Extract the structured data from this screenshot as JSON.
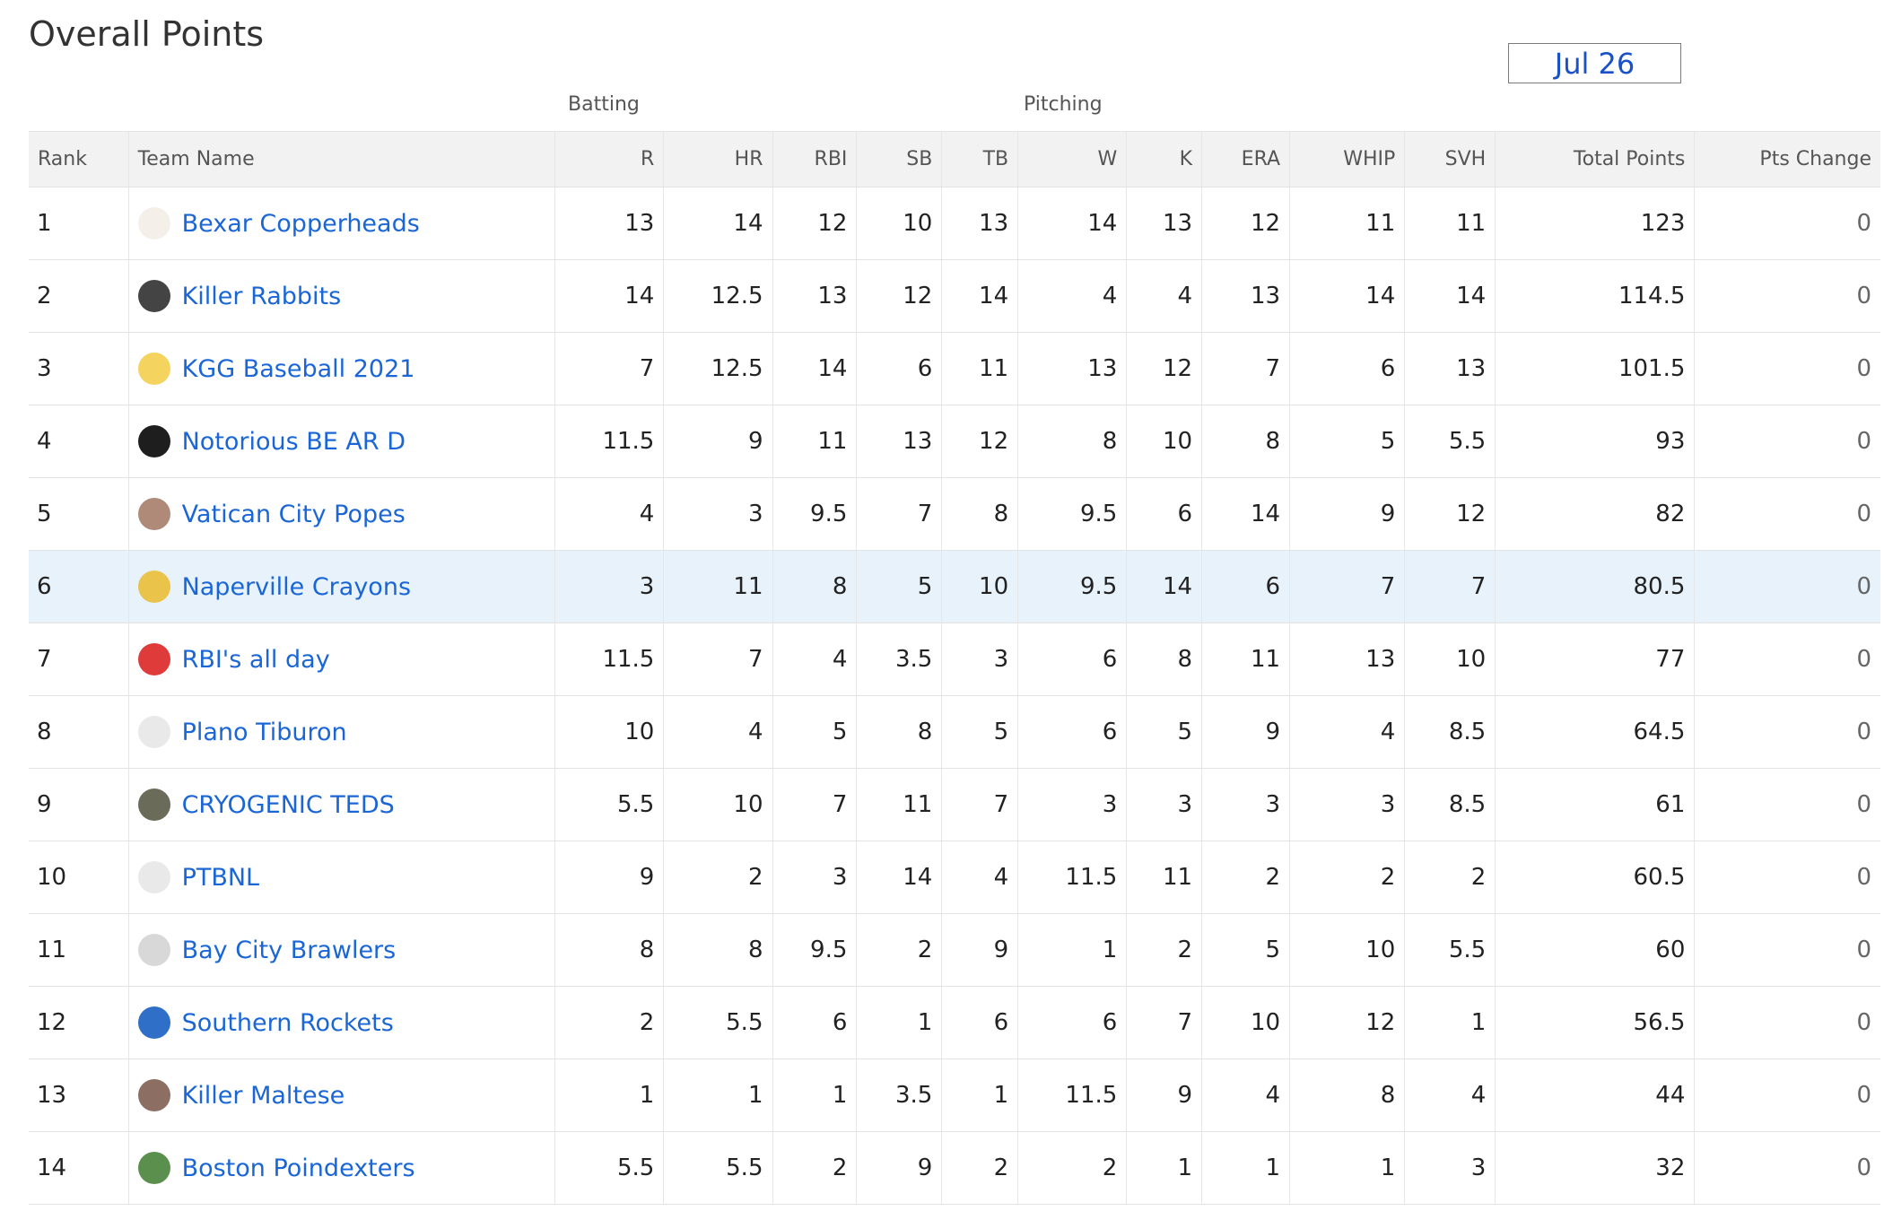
{
  "page": {
    "title": "Overall Points",
    "date_selector": "Jul 26"
  },
  "groups": {
    "batting": "Batting",
    "pitching": "Pitching"
  },
  "columns": [
    "Rank",
    "Team Name",
    "R",
    "HR",
    "RBI",
    "SB",
    "TB",
    "W",
    "K",
    "ERA",
    "WHIP",
    "SVH",
    "Total Points",
    "Pts Change"
  ],
  "rows": [
    {
      "rank": "1",
      "team": "Bexar Copperheads",
      "logo": "copperhead-logo-icon",
      "logo_color": "#f5efe9",
      "stats": [
        "13",
        "14",
        "12",
        "10",
        "13",
        "14",
        "13",
        "12",
        "11",
        "11"
      ],
      "total": "123",
      "change": "0"
    },
    {
      "rank": "2",
      "team": "Killer Rabbits",
      "logo": "rabbit-logo-icon",
      "logo_color": "#444444",
      "stats": [
        "14",
        "12.5",
        "13",
        "12",
        "14",
        "4",
        "4",
        "13",
        "14",
        "14"
      ],
      "total": "114.5",
      "change": "0"
    },
    {
      "rank": "3",
      "team": "KGG Baseball 2021",
      "logo": "cap-logo-icon",
      "logo_color": "#f4d35e",
      "stats": [
        "7",
        "12.5",
        "14",
        "6",
        "11",
        "13",
        "12",
        "7",
        "6",
        "13"
      ],
      "total": "101.5",
      "change": "0"
    },
    {
      "rank": "4",
      "team": "Notorious BE AR D",
      "logo": "bear-logo-icon",
      "logo_color": "#1e1e1e",
      "stats": [
        "11.5",
        "9",
        "11",
        "13",
        "12",
        "8",
        "10",
        "8",
        "5",
        "5.5"
      ],
      "total": "93",
      "change": "0"
    },
    {
      "rank": "5",
      "team": "Vatican City Popes",
      "logo": "pope-logo-icon",
      "logo_color": "#b08a78",
      "stats": [
        "4",
        "3",
        "9.5",
        "7",
        "8",
        "9.5",
        "6",
        "14",
        "9",
        "12"
      ],
      "total": "82",
      "change": "0"
    },
    {
      "rank": "6",
      "team": "Naperville Crayons",
      "logo": "crayon-logo-icon",
      "logo_color": "#e9c34a",
      "stats": [
        "3",
        "11",
        "8",
        "5",
        "10",
        "9.5",
        "14",
        "6",
        "7",
        "7"
      ],
      "total": "80.5",
      "change": "0"
    },
    {
      "rank": "7",
      "team": "RBI's all day",
      "logo": "red-cap-logo-icon",
      "logo_color": "#e03b3b",
      "stats": [
        "11.5",
        "7",
        "4",
        "3.5",
        "3",
        "6",
        "8",
        "11",
        "13",
        "10"
      ],
      "total": "77",
      "change": "0"
    },
    {
      "rank": "8",
      "team": "Plano Tiburon",
      "logo": "default-cap-logo-icon",
      "logo_color": "#e9e9e9",
      "stats": [
        "10",
        "4",
        "5",
        "8",
        "5",
        "6",
        "5",
        "9",
        "4",
        "8.5"
      ],
      "total": "64.5",
      "change": "0"
    },
    {
      "rank": "9",
      "team": "CRYOGENIC TEDS",
      "logo": "ted-logo-icon",
      "logo_color": "#6b6b5a",
      "stats": [
        "5.5",
        "10",
        "7",
        "11",
        "7",
        "3",
        "3",
        "3",
        "3",
        "8.5"
      ],
      "total": "61",
      "change": "0"
    },
    {
      "rank": "10",
      "team": "PTBNL",
      "logo": "default-cap-logo-icon",
      "logo_color": "#e9e9e9",
      "stats": [
        "9",
        "2",
        "3",
        "14",
        "4",
        "11.5",
        "11",
        "2",
        "2",
        "2"
      ],
      "total": "60.5",
      "change": "0"
    },
    {
      "rank": "11",
      "team": "Bay City Brawlers",
      "logo": "dog-logo-icon",
      "logo_color": "#d8d8d8",
      "stats": [
        "8",
        "8",
        "9.5",
        "2",
        "9",
        "1",
        "2",
        "5",
        "10",
        "5.5"
      ],
      "total": "60",
      "change": "0"
    },
    {
      "rank": "12",
      "team": "Southern Rockets",
      "logo": "rocket-logo-icon",
      "logo_color": "#2f6fc7",
      "stats": [
        "2",
        "5.5",
        "6",
        "1",
        "6",
        "6",
        "7",
        "10",
        "12",
        "1"
      ],
      "total": "56.5",
      "change": "0"
    },
    {
      "rank": "13",
      "team": "Killer Maltese",
      "logo": "maltese-logo-icon",
      "logo_color": "#8d6e63",
      "stats": [
        "1",
        "1",
        "1",
        "3.5",
        "1",
        "11.5",
        "9",
        "4",
        "8",
        "4"
      ],
      "total": "44",
      "change": "0"
    },
    {
      "rank": "14",
      "team": "Boston Poindexters",
      "logo": "frog-logo-icon",
      "logo_color": "#5a8f4e",
      "stats": [
        "5.5",
        "5.5",
        "2",
        "9",
        "2",
        "2",
        "1",
        "1",
        "1",
        "3"
      ],
      "total": "32",
      "change": "0"
    }
  ],
  "highlight_row_rank": "6",
  "colors": {
    "link": "#1a66d6",
    "header_bg": "#f2f2f2",
    "highlight_bg": "#e8f2fa"
  }
}
